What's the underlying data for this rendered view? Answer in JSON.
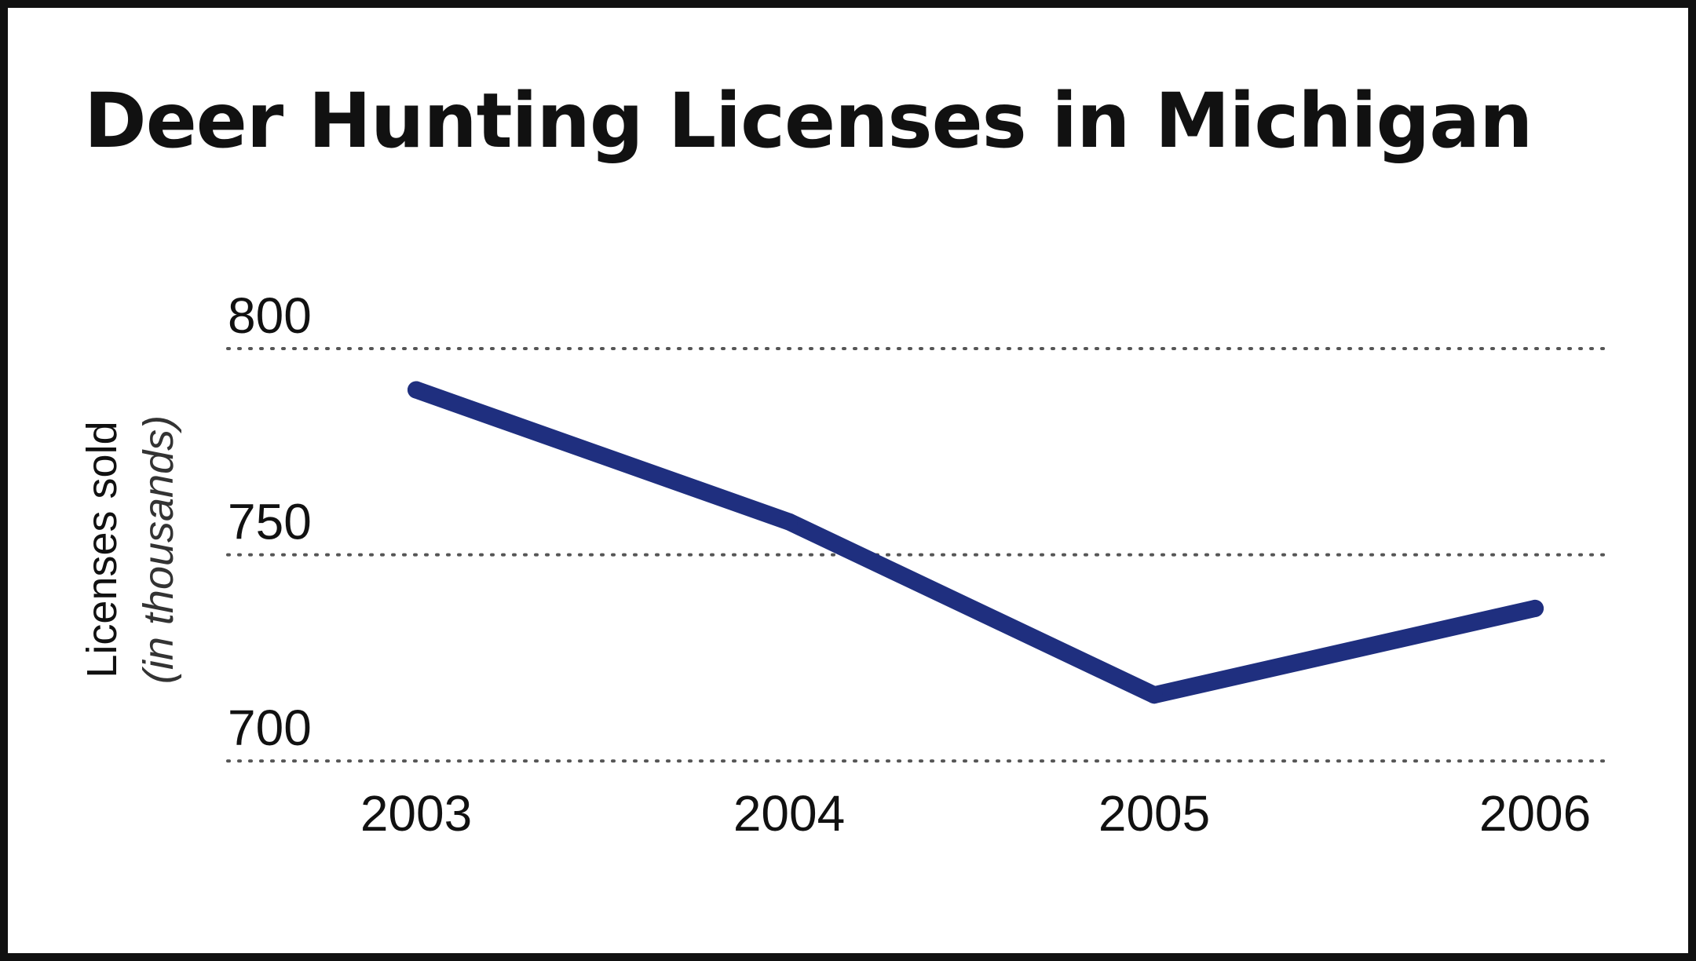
{
  "chart_data": {
    "type": "line",
    "title": "Deer Hunting Licenses in Michigan",
    "ylabel": "Licenses sold",
    "ylabel_sub": "(in thousands)",
    "xlabel": "",
    "categories": [
      "2003",
      "2004",
      "2005",
      "2006"
    ],
    "series": [
      {
        "values": [
          790,
          758,
          716,
          737
        ]
      }
    ],
    "yticks": [
      "800",
      "750",
      "700"
    ],
    "ylim": [
      697,
      816
    ],
    "grid": "dotted horizontal",
    "line_color": "#1f2f7f"
  }
}
